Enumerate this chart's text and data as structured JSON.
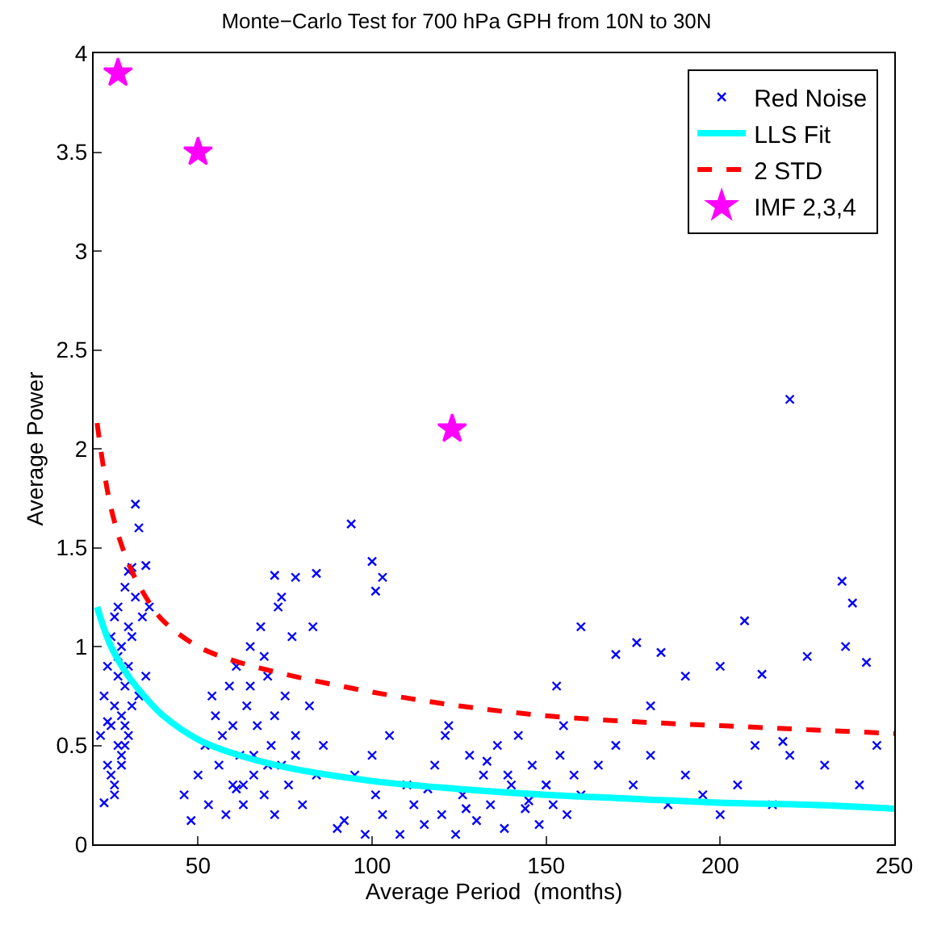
{
  "chart_data": {
    "type": "scatter",
    "title": "Monte−Carlo Test for 700 hPa GPH from 10N to 30N",
    "xlabel": "Average Period  (months)",
    "ylabel": "Average Power",
    "xlim": [
      20,
      250
    ],
    "xticks": [
      50,
      100,
      150,
      200,
      250
    ],
    "ylim": [
      0,
      4
    ],
    "yticks": [
      0,
      0.5,
      1,
      1.5,
      2,
      2.5,
      3,
      3.5,
      4
    ],
    "legend": "top right",
    "series": [
      {
        "name": "Red Noise",
        "marker": "cross",
        "color": "#0000ff",
        "x": [
          22,
          23,
          24,
          24,
          25,
          25,
          26,
          26,
          26,
          27,
          27,
          27,
          28,
          28,
          28,
          29,
          29,
          29,
          30,
          30,
          30,
          31,
          31,
          32,
          32,
          33,
          34,
          35,
          36,
          23,
          25,
          27,
          29,
          31,
          33,
          26,
          28,
          30,
          24,
          35,
          46,
          48,
          50,
          52,
          53,
          55,
          56,
          58,
          59,
          60,
          61,
          62,
          63,
          64,
          65,
          66,
          67,
          68,
          69,
          70,
          71,
          72,
          73,
          74,
          75,
          76,
          77,
          78,
          80,
          82,
          84,
          86,
          57,
          60,
          63,
          66,
          69,
          72,
          54,
          61,
          65,
          70,
          74,
          78,
          72,
          78,
          84,
          83,
          90,
          92,
          95,
          98,
          100,
          101,
          103,
          105,
          108,
          110,
          112,
          115,
          118,
          120,
          122,
          124,
          126,
          128,
          130,
          132,
          134,
          136,
          138,
          140,
          142,
          144,
          146,
          148,
          150,
          152,
          154,
          156,
          158,
          160,
          165,
          170,
          175,
          180,
          185,
          190,
          195,
          200,
          205,
          210,
          215,
          220,
          230,
          240,
          245,
          116,
          121,
          127,
          133,
          139,
          145,
          150,
          153,
          155,
          176,
          183,
          207,
          220,
          235,
          238,
          94,
          100,
          101,
          103,
          160,
          170,
          180,
          190,
          200,
          225,
          236,
          242,
          212,
          218
        ],
        "values": [
          0.55,
          0.75,
          0.4,
          0.9,
          0.6,
          1.05,
          0.3,
          0.7,
          1.15,
          0.5,
          0.85,
          1.2,
          0.45,
          0.65,
          1.0,
          0.6,
          0.8,
          1.3,
          0.55,
          0.9,
          1.38,
          0.7,
          1.4,
          1.25,
          1.72,
          1.6,
          1.15,
          1.41,
          1.2,
          0.21,
          0.35,
          0.95,
          0.5,
          1.05,
          0.75,
          0.25,
          0.4,
          1.1,
          0.62,
          0.85,
          0.25,
          0.12,
          0.35,
          0.5,
          0.2,
          0.65,
          0.4,
          0.15,
          0.8,
          0.3,
          0.9,
          0.45,
          0.2,
          0.7,
          1.0,
          0.35,
          0.6,
          1.1,
          0.25,
          0.85,
          0.5,
          0.15,
          1.2,
          0.4,
          0.75,
          0.3,
          1.05,
          0.55,
          0.2,
          0.7,
          0.35,
          0.5,
          0.55,
          0.6,
          0.3,
          0.45,
          0.95,
          0.65,
          0.75,
          0.28,
          0.8,
          0.4,
          1.25,
          0.45,
          1.36,
          1.35,
          1.37,
          1.1,
          0.08,
          0.12,
          0.35,
          0.05,
          0.45,
          0.25,
          0.15,
          0.55,
          0.05,
          0.3,
          0.2,
          0.1,
          0.4,
          0.15,
          0.6,
          0.05,
          0.25,
          0.45,
          0.12,
          0.35,
          0.2,
          0.5,
          0.08,
          0.3,
          0.55,
          0.18,
          0.4,
          0.1,
          0.3,
          0.2,
          0.45,
          0.15,
          0.35,
          0.25,
          0.4,
          0.5,
          0.3,
          0.45,
          0.2,
          0.35,
          0.25,
          0.15,
          0.3,
          0.5,
          0.2,
          0.45,
          0.4,
          0.3,
          0.5,
          0.28,
          0.55,
          0.18,
          0.42,
          0.35,
          0.22,
          0.3,
          0.8,
          0.6,
          1.02,
          0.97,
          1.13,
          2.25,
          1.33,
          1.22,
          1.62,
          1.43,
          1.28,
          1.35,
          1.1,
          0.96,
          0.7,
          0.85,
          0.9,
          0.95,
          1.0,
          0.92,
          0.86,
          0.52
        ]
      },
      {
        "name": "LLS Fit",
        "type": "line",
        "color": "#00ffff",
        "line_style": "solid",
        "marker": "none",
        "x": [
          21,
          25,
          30,
          35,
          40,
          50,
          60,
          75,
          100,
          125,
          150,
          175,
          200,
          225,
          250
        ],
        "values": [
          1.2,
          1.0,
          0.85,
          0.74,
          0.65,
          0.53,
          0.46,
          0.39,
          0.32,
          0.28,
          0.25,
          0.23,
          0.21,
          0.2,
          0.18
        ]
      },
      {
        "name": "2 STD",
        "type": "line",
        "color": "#ff0000",
        "line_style": "dashed",
        "marker": "none",
        "x": [
          21,
          25,
          30,
          35,
          40,
          50,
          60,
          75,
          100,
          125,
          150,
          175,
          200,
          225,
          250
        ],
        "values": [
          2.13,
          1.7,
          1.42,
          1.25,
          1.13,
          1.0,
          0.93,
          0.86,
          0.77,
          0.7,
          0.65,
          0.62,
          0.6,
          0.58,
          0.56
        ]
      },
      {
        "name": "IMF 2,3,4",
        "color": "#ff00ff",
        "marker": "star",
        "x": [
          27,
          50,
          123
        ],
        "values": [
          3.9,
          3.5,
          2.1
        ]
      }
    ]
  }
}
